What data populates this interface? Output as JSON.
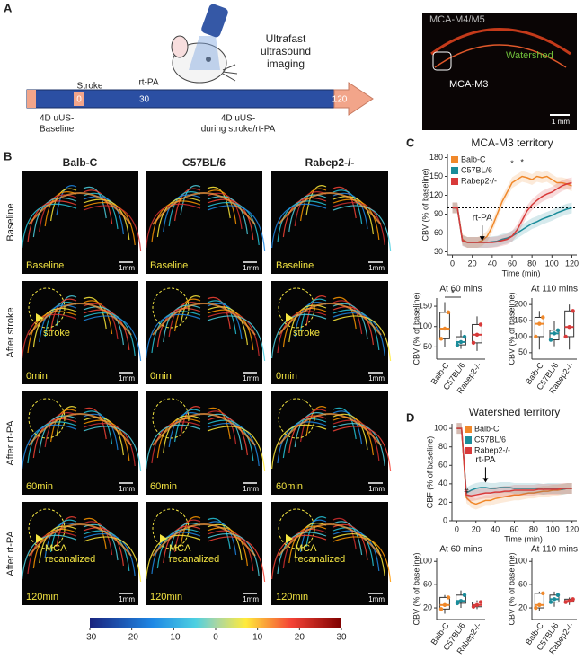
{
  "panel_a": {
    "label": "A",
    "title": [
      "Ultrafast",
      "ultrasound",
      "imaging"
    ],
    "stroke": "Stroke",
    "rtpa": "rt-PA",
    "times": [
      0,
      30,
      120
    ],
    "baseline_label": [
      "4D uUS-",
      "Baseline"
    ],
    "during_label": [
      "4D uUS-",
      "during stroke/rt-PA"
    ],
    "image": {
      "labels": [
        "MCA-M4/M5",
        "Watershed",
        "MCA-M3"
      ],
      "scale": "1 mm"
    }
  },
  "panel_b": {
    "label": "B",
    "columns": [
      "Balb-C",
      "C57BL/6",
      "Rabep2-/-"
    ],
    "rows": [
      {
        "label": "Baseline",
        "time": "Baseline"
      },
      {
        "label": "After stroke",
        "time": "0min",
        "annotation": [
          "stroke"
        ]
      },
      {
        "label": "After rt-PA",
        "time": "60min"
      },
      {
        "label": "After rt-PA",
        "time": "120min",
        "annotation": [
          "MCA",
          "recanalized"
        ]
      }
    ],
    "scale": "1mm",
    "colorbar": {
      "ticks": [
        -30,
        -20,
        -10,
        0,
        10,
        20,
        30
      ]
    }
  },
  "panel_c": {
    "label": "C",
    "chart": {
      "type": "line",
      "title": "MCA-M3 territory",
      "x_label": "Time (min)",
      "y_label": "CBV (% of baseline)",
      "annotation": "rt-PA",
      "stars": [
        "*",
        "*"
      ],
      "baseline": 100,
      "legend": "upper left",
      "x": [
        0,
        5,
        10,
        15,
        20,
        25,
        30,
        35,
        40,
        45,
        50,
        55,
        60,
        65,
        70,
        75,
        80,
        85,
        90,
        95,
        100,
        105,
        110,
        115,
        120
      ],
      "xlim": [
        -5,
        125
      ],
      "ylim": [
        25,
        185
      ],
      "xticks": [
        0,
        20,
        40,
        60,
        80,
        100,
        120
      ],
      "yticks": [
        30,
        60,
        90,
        120,
        150,
        180
      ],
      "series": [
        {
          "name": "Balb-C",
          "color": "#f0882a",
          "values": [
            100,
            100,
            50,
            45,
            45,
            45,
            48,
            55,
            70,
            90,
            110,
            125,
            140,
            145,
            150,
            148,
            145,
            150,
            148,
            150,
            145,
            140,
            140,
            138,
            135
          ]
        },
        {
          "name": "C57BL/6",
          "color": "#1a8c9a",
          "values": [
            100,
            100,
            48,
            45,
            45,
            45,
            45,
            45,
            46,
            47,
            50,
            52,
            55,
            60,
            65,
            70,
            75,
            78,
            82,
            85,
            88,
            92,
            95,
            98,
            100
          ]
        },
        {
          "name": "Rabep2-/-",
          "color": "#d83a3a",
          "values": [
            100,
            100,
            48,
            45,
            45,
            45,
            45,
            45,
            45,
            46,
            48,
            50,
            55,
            65,
            80,
            95,
            105,
            112,
            118,
            122,
            125,
            130,
            135,
            138,
            140
          ]
        }
      ]
    },
    "boxes": [
      {
        "type": "box",
        "title": "At 60 mins",
        "y_label": "CBV (% of baseline)",
        "star": "*",
        "categories": [
          "Balb-C",
          "C57BL/6",
          "Rabep2-/-"
        ],
        "colors": [
          "#f0882a",
          "#1a8c9a",
          "#d83a3a"
        ],
        "ylim": [
          20,
          170
        ],
        "yticks": [
          50,
          100,
          150
        ],
        "boxes": [
          {
            "min": 50,
            "q1": 70,
            "median": 95,
            "q3": 135,
            "max": 160
          },
          {
            "min": 45,
            "q1": 55,
            "median": 62,
            "q3": 75,
            "max": 90
          },
          {
            "min": 40,
            "q1": 60,
            "median": 80,
            "q3": 105,
            "max": 125
          }
        ]
      },
      {
        "type": "box",
        "title": "At 110 mins",
        "y_label": "CBV (% of baseline)",
        "categories": [
          "Balb-C",
          "C57BL/6",
          "Rabep2-/-"
        ],
        "colors": [
          "#f0882a",
          "#1a8c9a",
          "#d83a3a"
        ],
        "ylim": [
          30,
          220
        ],
        "yticks": [
          50,
          100,
          150,
          200
        ],
        "boxes": [
          {
            "min": 60,
            "q1": 100,
            "median": 140,
            "q3": 160,
            "max": 180
          },
          {
            "min": 70,
            "q1": 90,
            "median": 110,
            "q3": 120,
            "max": 150
          },
          {
            "min": 60,
            "q1": 100,
            "median": 130,
            "q3": 180,
            "max": 200
          }
        ]
      }
    ]
  },
  "panel_d": {
    "label": "D",
    "chart": {
      "type": "line",
      "title": "Watershed territory",
      "x_label": "Time (min)",
      "y_label": "CBF (% of baseline)",
      "annotation": "rt-PA",
      "stars": [
        "#"
      ],
      "legend": "upper center",
      "x": [
        0,
        5,
        10,
        15,
        20,
        25,
        30,
        35,
        40,
        45,
        50,
        55,
        60,
        65,
        70,
        75,
        80,
        85,
        90,
        95,
        100,
        105,
        110,
        115,
        120
      ],
      "xlim": [
        -5,
        125
      ],
      "ylim": [
        0,
        105
      ],
      "xticks": [
        0,
        20,
        40,
        60,
        80,
        100,
        120
      ],
      "yticks": [
        0,
        20,
        40,
        60,
        80,
        100
      ],
      "series": [
        {
          "name": "Balb-C",
          "color": "#f0882a",
          "values": [
            100,
            100,
            25,
            20,
            18,
            20,
            22,
            22,
            24,
            25,
            26,
            27,
            28,
            28,
            29,
            30,
            30,
            31,
            32,
            32,
            33,
            33,
            34,
            35,
            35
          ]
        },
        {
          "name": "C57BL/6",
          "color": "#1a8c9a",
          "values": [
            100,
            100,
            30,
            33,
            35,
            36,
            36,
            35,
            35,
            36,
            36,
            36,
            35,
            35,
            35,
            35,
            35,
            35,
            34,
            35,
            35,
            35,
            34,
            35,
            35
          ]
        },
        {
          "name": "Rabep2-/-",
          "color": "#d83a3a",
          "values": [
            100,
            100,
            28,
            27,
            28,
            29,
            30,
            30,
            31,
            31,
            32,
            32,
            33,
            33,
            33,
            33,
            33,
            34,
            34,
            34,
            34,
            34,
            35,
            35,
            35
          ]
        }
      ]
    },
    "boxes": [
      {
        "type": "box",
        "title": "At 60 mins",
        "y_label": "CBV (% of baseline)",
        "categories": [
          "Balb-C",
          "C57BL/6",
          "Rabep2-/-"
        ],
        "colors": [
          "#f0882a",
          "#1a8c9a",
          "#d83a3a"
        ],
        "ylim": [
          0,
          105
        ],
        "yticks": [
          20,
          60,
          100
        ],
        "boxes": [
          {
            "min": 10,
            "q1": 18,
            "median": 25,
            "q3": 38,
            "max": 42
          },
          {
            "min": 20,
            "q1": 28,
            "median": 32,
            "q3": 42,
            "max": 50
          },
          {
            "min": 18,
            "q1": 22,
            "median": 25,
            "q3": 30,
            "max": 33
          }
        ]
      },
      {
        "type": "box",
        "title": "At 110 mins",
        "y_label": "CBV (% of baseline)",
        "categories": [
          "Balb-C",
          "C57BL/6",
          "Rabep2-/-"
        ],
        "colors": [
          "#f0882a",
          "#1a8c9a",
          "#d83a3a"
        ],
        "ylim": [
          0,
          105
        ],
        "yticks": [
          20,
          60,
          100
        ],
        "boxes": [
          {
            "min": 15,
            "q1": 20,
            "median": 25,
            "q3": 45,
            "max": 48
          },
          {
            "min": 22,
            "q1": 30,
            "median": 35,
            "q3": 42,
            "max": 48
          },
          {
            "min": 25,
            "q1": 30,
            "median": 32,
            "q3": 35,
            "max": 38
          }
        ]
      }
    ]
  }
}
